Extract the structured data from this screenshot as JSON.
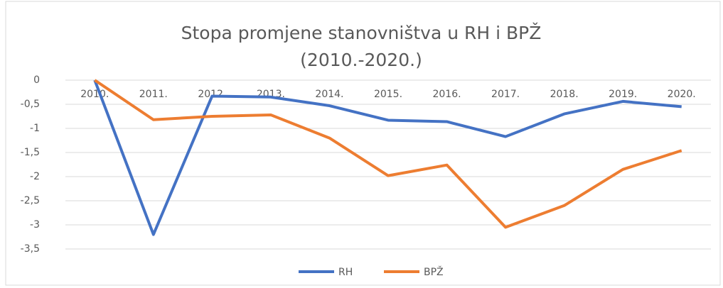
{
  "chart_data": {
    "type": "line",
    "title": "Stopa promjene stanovništva u RH i BPŽ (2010.-2020.)",
    "categories": [
      "2010.",
      "2011.",
      "2012.",
      "2013.",
      "2014.",
      "2015.",
      "2016.",
      "2017.",
      "2018.",
      "2019.",
      "2020."
    ],
    "series": [
      {
        "name": "RH",
        "color": "#4472c4",
        "values": [
          0,
          -3.2,
          -0.33,
          -0.35,
          -0.53,
          -0.83,
          -0.86,
          -1.17,
          -0.7,
          -0.44,
          -0.55
        ]
      },
      {
        "name": "BPŽ",
        "color": "#ed7d31",
        "values": [
          0,
          -0.82,
          -0.75,
          -0.72,
          -1.2,
          -1.98,
          -1.76,
          -3.05,
          -2.6,
          -1.85,
          -1.46
        ]
      }
    ],
    "ylim": [
      -3.5,
      0
    ],
    "yticks": [
      0,
      {
        "value": -0.5,
        "label": "-0,5"
      },
      -1,
      {
        "value": -1.5,
        "label": "-1,5"
      },
      -2,
      {
        "value": -2.5,
        "label": "-2,5"
      },
      -3,
      {
        "value": -3.5,
        "label": "-3,5"
      }
    ],
    "grid": true,
    "legend": "bottom"
  }
}
